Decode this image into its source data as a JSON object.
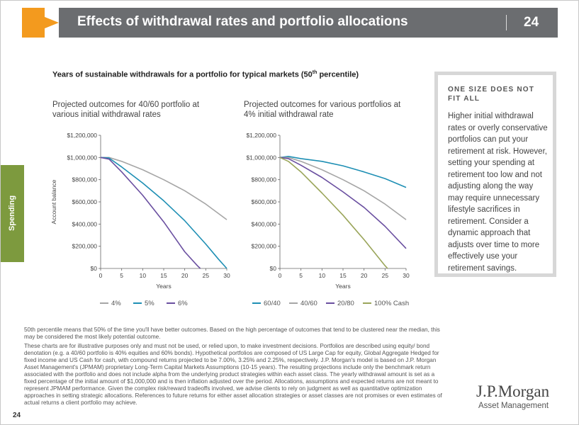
{
  "header": {
    "title": "Effects of withdrawal rates and portfolio allocations",
    "page_number": "24"
  },
  "side_tab": {
    "label": "Spending"
  },
  "heading": {
    "text": "Years of sustainable withdrawals for a portfolio for typical markets (50",
    "sup": "th",
    "suffix": " percentile)"
  },
  "callout": {
    "heading": "ONE SIZE DOES NOT FIT ALL",
    "body": "Higher initial withdrawal rates or overly conservative portfolios can put your retirement at risk. However, setting your spending at retirement too low and not adjusting along the way may require unnecessary lifestyle sacrifices in retirement. Consider a dynamic approach that adjusts over time to more effectively use your retirement savings."
  },
  "footnotes": [
    "50th percentile means that 50% of the time you'll have better outcomes. Based on the high percentage of outcomes that tend to be clustered near the median, this may be considered the most likely potential outcome.",
    "These charts are for illustrative purposes only and must not be used, or relied upon, to make investment decisions. Portfolios are described using equity/ bond denotation (e.g. a 40/60 portfolio is 40% equities and 60% bonds). Hypothetical portfolios are composed of US Large Cap for equity, Global Aggregate Hedged for fixed income and US Cash for cash, with compound returns projected to be 7.00%, 3.25% and 2.25%, respectively. J.P. Morgan's model is based on J.P. Morgan Asset Management's (JPMAM) proprietary Long-Term Capital Markets Assumptions (10-15 years). The resulting projections include only the benchmark return associated with the portfolio and does not include alpha from the underlying product strategies within each asset class. The yearly withdrawal amount is set as a fixed percentage of the initial amount of $1,000,000 and is then inflation adjusted over the period. Allocations, assumptions and expected returns are not meant to represent JPMAM performance. Given the complex risk/reward tradeoffs involved, we advise clients to rely on judgment as well as quantitative optimization approaches in setting strategic allocations. References to future returns for either asset allocation strategies or asset classes are not promises or even estimates of actual returns a client portfolio may achieve."
  ],
  "logo": {
    "name": "J.P.Morgan",
    "sub": "Asset Management"
  },
  "page_number_bottom": "24",
  "colors": {
    "header": "#6b6d70",
    "accent": "#f39a1e",
    "side_tab": "#7d9a3e"
  },
  "chart_data": [
    {
      "type": "line",
      "title": "Projected outcomes for 40/60 portfolio at various initial withdrawal rates",
      "xlabel": "Years",
      "ylabel": "Account balance",
      "xlim": [
        0,
        30
      ],
      "ylim": [
        0,
        1200000
      ],
      "xticks": [
        "0",
        "5",
        "10",
        "15",
        "20",
        "25",
        "30"
      ],
      "yticks": [
        "$0",
        "$200,000",
        "$400,000",
        "$600,000",
        "$800,000",
        "$1,000,000",
        "$1,200,000"
      ],
      "legend_position": "bottom",
      "series": [
        {
          "name": "4%",
          "color": "#a6a6a6",
          "x": [
            0,
            2,
            5,
            10,
            15,
            20,
            25,
            30
          ],
          "values": [
            1000000,
            1000000,
            965000,
            890000,
            800000,
            700000,
            580000,
            440000
          ]
        },
        {
          "name": "5%",
          "color": "#1e8fb4",
          "x": [
            0,
            2,
            5,
            10,
            15,
            20,
            25,
            28,
            30
          ],
          "values": [
            1000000,
            995000,
            915000,
            770000,
            610000,
            430000,
            220000,
            85000,
            0
          ]
        },
        {
          "name": "6%",
          "color": "#6a4fa0",
          "x": [
            0,
            2,
            5,
            10,
            15,
            20,
            23,
            23.7
          ],
          "values": [
            1000000,
            985000,
            870000,
            660000,
            420000,
            150000,
            25000,
            0
          ]
        }
      ]
    },
    {
      "type": "line",
      "title": "Projected outcomes for various portfolios at 4% initial withdrawal rate",
      "xlabel": "Years",
      "ylabel": "",
      "xlim": [
        0,
        30
      ],
      "ylim": [
        0,
        1200000
      ],
      "xticks": [
        "0",
        "5",
        "10",
        "15",
        "20",
        "25",
        "30"
      ],
      "yticks": [
        "$0",
        "$200,000",
        "$400,000",
        "$600,000",
        "$800,000",
        "$1,000,000",
        "$1,200,000"
      ],
      "legend_position": "bottom",
      "series": [
        {
          "name": "60/40",
          "color": "#1e8fb4",
          "x": [
            0,
            2,
            5,
            10,
            15,
            20,
            25,
            30
          ],
          "values": [
            1000000,
            1010000,
            990000,
            965000,
            925000,
            870000,
            810000,
            730000
          ]
        },
        {
          "name": "40/60",
          "color": "#a6a6a6",
          "x": [
            0,
            2,
            5,
            10,
            15,
            20,
            25,
            30
          ],
          "values": [
            1000000,
            1000000,
            965000,
            890000,
            800000,
            700000,
            580000,
            440000
          ]
        },
        {
          "name": "20/80",
          "color": "#6a4fa0",
          "x": [
            0,
            2,
            5,
            10,
            15,
            20,
            25,
            30
          ],
          "values": [
            1000000,
            990000,
            930000,
            820000,
            690000,
            550000,
            380000,
            180000
          ]
        },
        {
          "name": "100% Cash",
          "color": "#9aa55a",
          "x": [
            0,
            2,
            5,
            10,
            15,
            20,
            25,
            25.6
          ],
          "values": [
            1000000,
            965000,
            870000,
            680000,
            480000,
            260000,
            25000,
            0
          ]
        }
      ]
    }
  ]
}
